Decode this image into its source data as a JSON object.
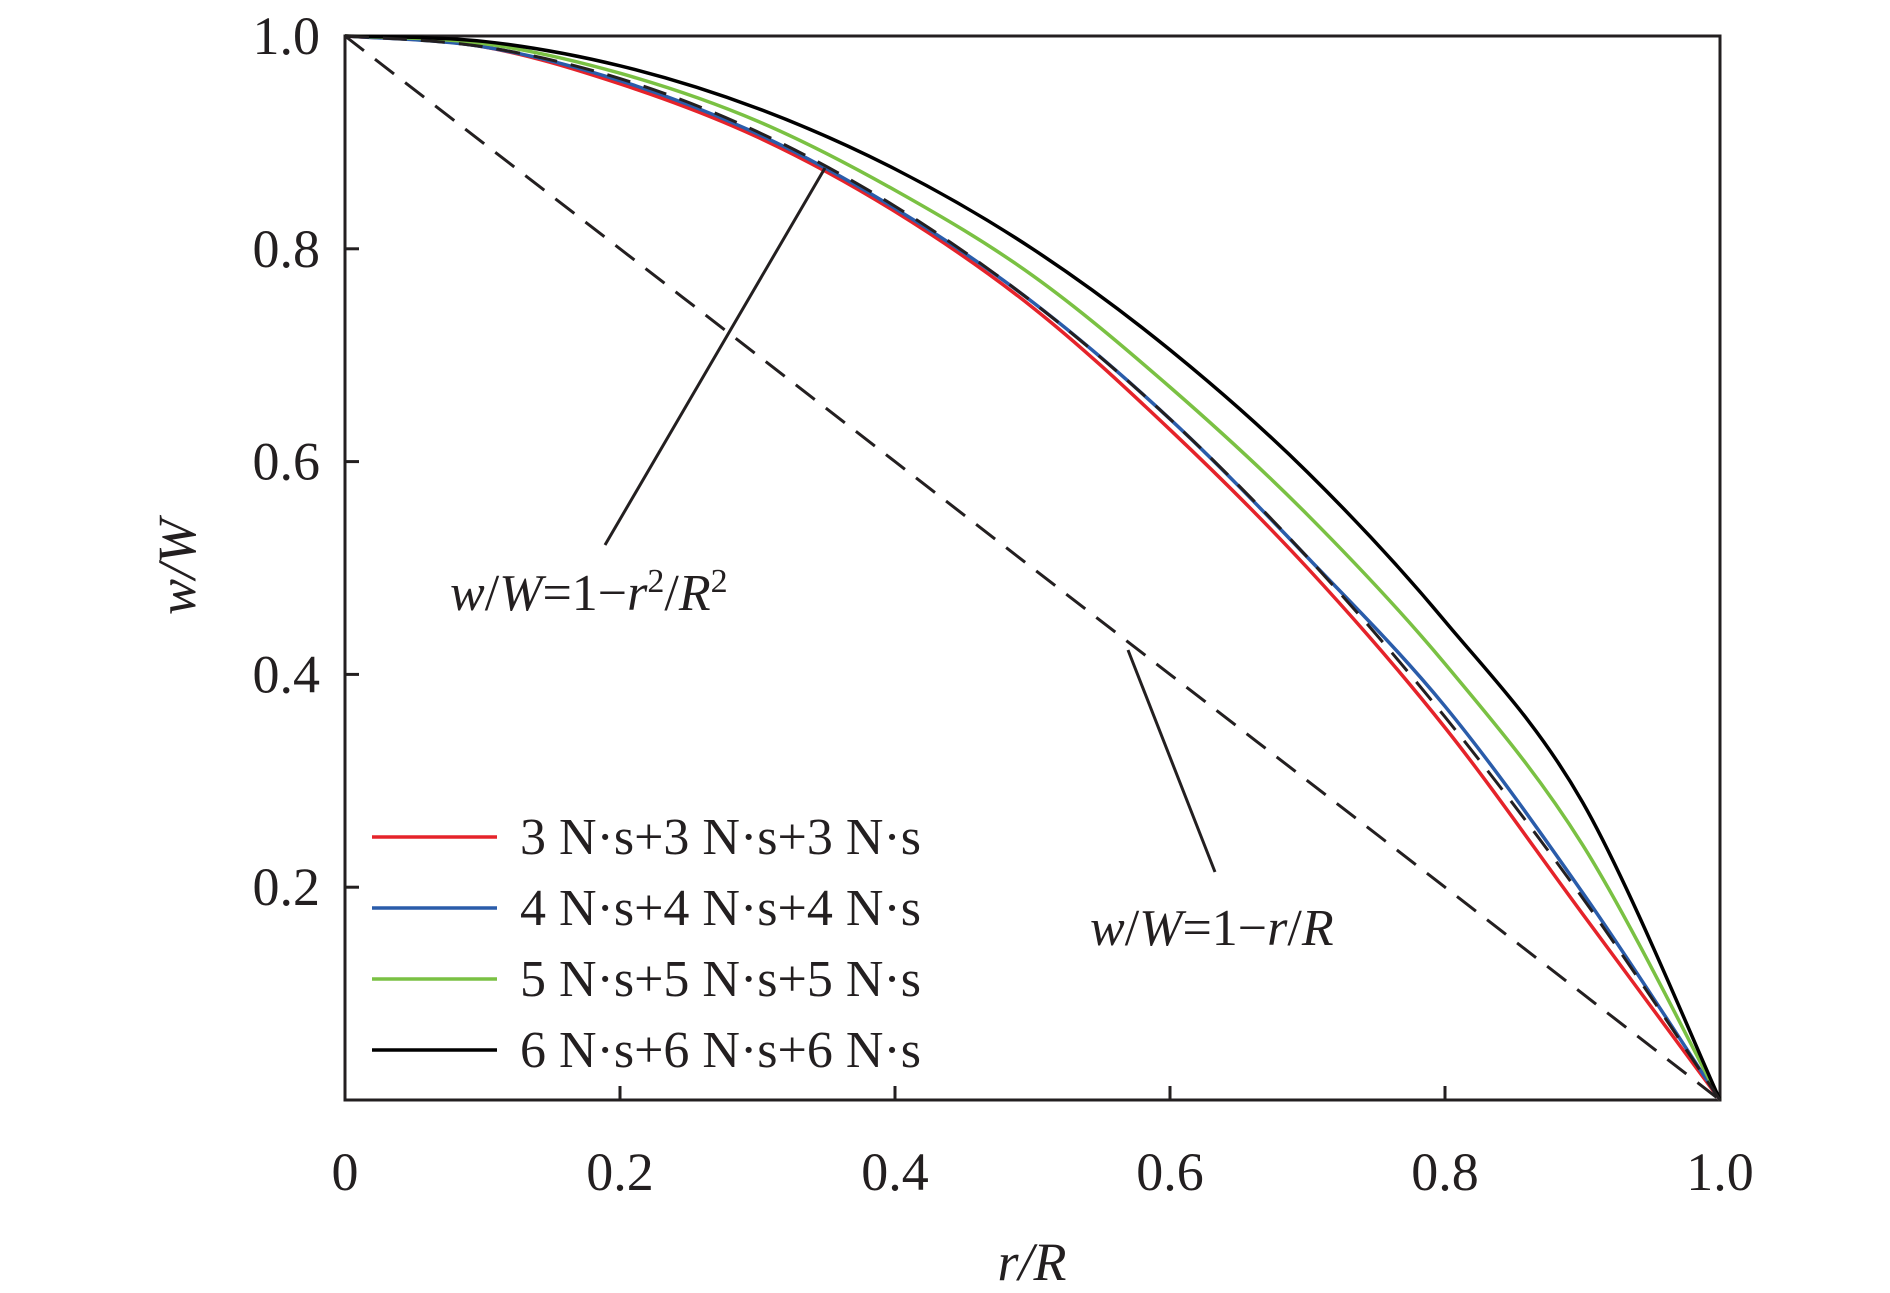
{
  "chart_data": {
    "type": "line",
    "title": "",
    "xlabel": "r/R",
    "ylabel": "w/W",
    "xlim": [
      0,
      1.0
    ],
    "ylim": [
      0,
      1.0
    ],
    "x_ticks": [
      "0",
      "0.2",
      "0.4",
      "0.6",
      "0.8",
      "1.0"
    ],
    "y_ticks": [
      "0.2",
      "0.4",
      "0.6",
      "0.8",
      "1.0"
    ],
    "grid": false,
    "legend_position": "bottom-left",
    "x": [
      0,
      0.1,
      0.2,
      0.3,
      0.4,
      0.5,
      0.6,
      0.7,
      0.8,
      0.9,
      1.0
    ],
    "series": [
      {
        "name": "3 N·s+3 N·s+3 N·s",
        "color": "#e5232a",
        "style": "solid",
        "values": [
          1.0,
          0.99,
          0.955,
          0.905,
          0.835,
          0.745,
          0.63,
          0.5,
          0.35,
          0.175,
          0.0
        ]
      },
      {
        "name": "4 N·s+4 N·s+4 N·s",
        "color": "#2a5caa",
        "style": "solid",
        "values": [
          1.0,
          0.99,
          0.958,
          0.908,
          0.838,
          0.75,
          0.64,
          0.51,
          0.37,
          0.195,
          0.0
        ]
      },
      {
        "name": "5 N·s+5 N·s+5 N·s",
        "color": "#7ac143",
        "style": "solid",
        "values": [
          1.0,
          0.993,
          0.965,
          0.92,
          0.855,
          0.775,
          0.67,
          0.55,
          0.41,
          0.24,
          0.0
        ]
      },
      {
        "name": "6 N·s+6 N·s+6 N·s",
        "color": "#000000",
        "style": "solid",
        "values": [
          1.0,
          0.995,
          0.972,
          0.932,
          0.875,
          0.8,
          0.705,
          0.59,
          0.45,
          0.28,
          0.0
        ]
      },
      {
        "name": "",
        "color": "#231f20",
        "style": "dashed",
        "values": [
          1.0,
          0.99,
          0.96,
          0.91,
          0.84,
          0.75,
          0.64,
          0.51,
          0.36,
          0.19,
          0.0
        ]
      },
      {
        "name": "",
        "color": "#231f20",
        "style": "dashed",
        "values": [
          1.0,
          0.9,
          0.8,
          0.7,
          0.6,
          0.5,
          0.4,
          0.3,
          0.2,
          0.1,
          0.0
        ]
      }
    ],
    "annotations": [
      {
        "text": "w/W=1−r²/R²",
        "points_to_x": 0.35,
        "points_to_y": 0.877
      },
      {
        "text": "w/W=1−r/R",
        "points_to_x": 0.57,
        "points_to_y": 0.43
      }
    ]
  }
}
